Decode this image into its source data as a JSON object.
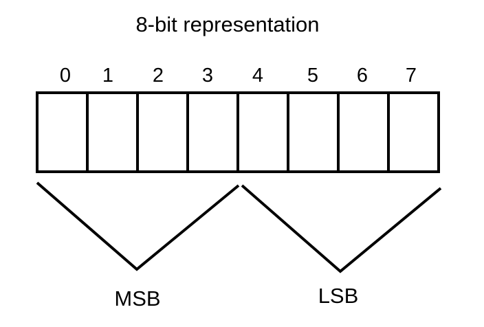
{
  "title": "8-bit representation",
  "bits": [
    {
      "index": "0"
    },
    {
      "index": "1"
    },
    {
      "index": "2"
    },
    {
      "index": "3"
    },
    {
      "index": "4"
    },
    {
      "index": "5"
    },
    {
      "index": "6"
    },
    {
      "index": "7"
    }
  ],
  "groups": {
    "msb": {
      "label": "MSB"
    },
    "lsb": {
      "label": "LSB"
    }
  }
}
